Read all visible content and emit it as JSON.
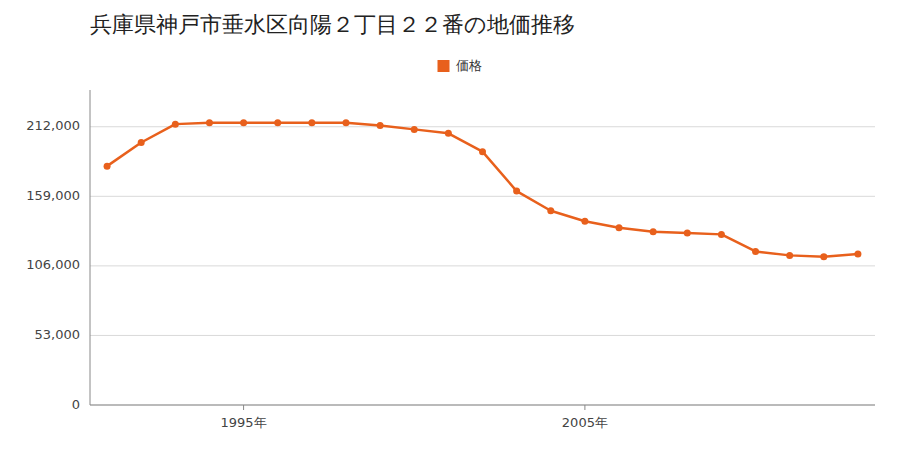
{
  "chart_data": {
    "type": "line",
    "title": "兵庫県神戸市垂水区向陽２丁目２２番の地価推移",
    "x": [
      1991,
      1992,
      1993,
      1994,
      1995,
      1996,
      1997,
      1998,
      1999,
      2000,
      2001,
      2002,
      2003,
      2004,
      2005,
      2006,
      2007,
      2008,
      2009,
      2010,
      2011,
      2012,
      2013
    ],
    "series": [
      {
        "name": "価格",
        "color": "#e8601c",
        "marker": "circle",
        "line_style": "solid",
        "values": [
          182000,
          200000,
          214000,
          215000,
          215000,
          215000,
          215000,
          215000,
          213000,
          210000,
          207000,
          193000,
          163000,
          148000,
          140000,
          135000,
          132000,
          131000,
          130000,
          117000,
          114000,
          113000,
          115000
        ]
      }
    ],
    "xlim": [
      1990.5,
      2013.5
    ],
    "xticks": [
      {
        "value": 1995,
        "label": "1995年"
      },
      {
        "value": 2005,
        "label": "2005年"
      }
    ],
    "ylim": [
      0,
      240000
    ],
    "yticks": [
      0,
      {
        "value": 53000,
        "label": "53,000"
      },
      {
        "value": 106000,
        "label": "106,000"
      },
      {
        "value": 159000,
        "label": "159,000"
      },
      {
        "value": 212000,
        "label": "212,000"
      }
    ],
    "grid": "y",
    "legend": "top"
  }
}
